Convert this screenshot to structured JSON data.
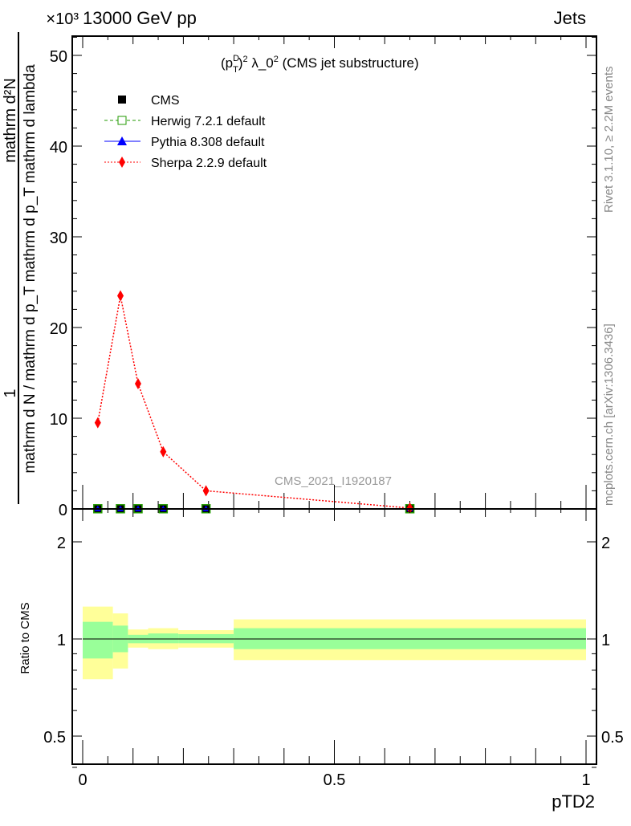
{
  "header": {
    "left": "13000 GeV pp",
    "right": "Jets",
    "multiplier": "×10³"
  },
  "side_text": {
    "rivet": "Rivet 3.1.10, ≥ 2.2M events",
    "mcplots": "mcplots.cern.ch [arXiv:1306.3436]"
  },
  "colors": {
    "cms": "#000000",
    "herwig": "#229900",
    "pythia": "#0000ff",
    "sherpa": "#ff0000",
    "band_yellow": "#ffff99",
    "band_green": "#99ff99"
  },
  "chart_data": [
    {
      "type": "line",
      "title": "(p_T^D)^2 λ_0^2 (CMS jet substructure)",
      "title_parts": {
        "a": "(p",
        "sup1": "D",
        "sub1": "T",
        "b": ")",
        "sup2": "2",
        "c": " λ_0",
        "sup3": "2",
        "d": " (CMS jet substructure)"
      },
      "watermark": "CMS_2021_I1920187",
      "ylabel_parts": {
        "num_top": "mathrm d²N",
        "num_one": "1",
        "den": "mathrm d N / mathrm d p_T mathrm d p_T mathrm d lambda"
      },
      "ylabel_full": "1/(mathrm d N / mathrm d p_T) mathrm d²N / (mathrm d p_T mathrm d lambda)",
      "xlabel": "pTD2",
      "xlim": [
        0,
        1
      ],
      "ylim": [
        0,
        52
      ],
      "yticks": [
        0,
        10,
        20,
        30,
        40,
        50
      ],
      "xticks": [
        0,
        0.5,
        1
      ],
      "xtick_labels": [
        "0",
        "0.5",
        "1"
      ],
      "ytick_labels": [
        "0",
        "10",
        "20",
        "30",
        "40",
        "50"
      ],
      "legend_position": "top-left",
      "x": [
        0.03,
        0.075,
        0.11,
        0.16,
        0.245,
        0.65
      ],
      "series": [
        {
          "name": "CMS",
          "values": [
            0.02,
            0.02,
            0.02,
            0.02,
            0.02,
            0.02
          ],
          "marker": "square"
        },
        {
          "name": "Herwig 7.2.1 default",
          "values": [
            0.02,
            0.02,
            0.02,
            0.02,
            0.02,
            0.02
          ],
          "marker": "open-square",
          "line": "dashed"
        },
        {
          "name": "Pythia 8.308 default",
          "values": [
            0.02,
            0.02,
            0.02,
            0.02,
            0.02,
            0.02
          ],
          "marker": "triangle",
          "line": "solid"
        },
        {
          "name": "Sherpa 2.2.9 default",
          "values": [
            9.5,
            23.5,
            13.8,
            6.3,
            2.0,
            0.1
          ],
          "marker": "diamond",
          "line": "dotted"
        }
      ]
    },
    {
      "type": "area",
      "ylabel": "Ratio to CMS",
      "xlabel": "pTD2",
      "yscale": "log",
      "ylim": [
        0.4,
        2.5
      ],
      "yticks": [
        0.5,
        1,
        2
      ],
      "ytick_labels": [
        "0.5",
        "1",
        "2"
      ],
      "xticks": [
        0,
        0.5,
        1
      ],
      "xtick_labels": [
        "0",
        "0.5",
        "1"
      ],
      "bin_edges": [
        0,
        0.06,
        0.09,
        0.13,
        0.19,
        0.3,
        1.0
      ],
      "yellow_band": {
        "upper": [
          1.26,
          1.2,
          1.07,
          1.08,
          1.065,
          1.15
        ],
        "lower": [
          0.75,
          0.81,
          0.94,
          0.93,
          0.94,
          0.86
        ]
      },
      "green_band": {
        "upper": [
          1.13,
          1.1,
          1.03,
          1.04,
          1.035,
          1.08
        ],
        "lower": [
          0.87,
          0.91,
          0.97,
          0.97,
          0.97,
          0.93
        ]
      }
    }
  ]
}
